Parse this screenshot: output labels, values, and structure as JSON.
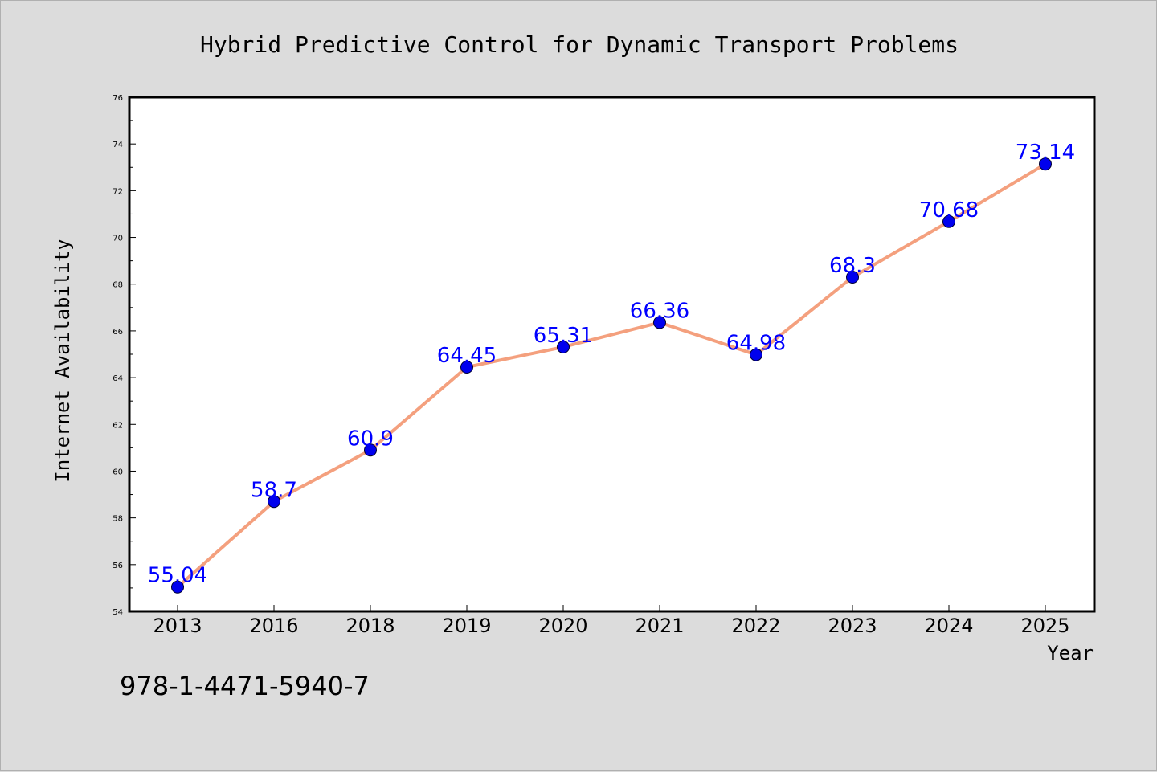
{
  "chart_data": {
    "type": "line",
    "title": "Hybrid Predictive Control for Dynamic Transport Problems",
    "xlabel": "Year",
    "ylabel": "Internet Availability",
    "categories": [
      "2013",
      "2016",
      "2018",
      "2019",
      "2020",
      "2021",
      "2022",
      "2023",
      "2024",
      "2025"
    ],
    "values": [
      55.04,
      58.7,
      60.9,
      64.45,
      65.31,
      66.36,
      64.98,
      68.3,
      70.68,
      73.14
    ],
    "data_labels": [
      "55.04",
      "58.7",
      "60.9",
      "64.45",
      "65.31",
      "66.36",
      "64.98",
      "68.3",
      "70.68",
      "73.14"
    ],
    "ylim": [
      54,
      76
    ],
    "yticks": [
      "54",
      "56",
      "58",
      "60",
      "62",
      "64",
      "66",
      "68",
      "70",
      "72",
      "74",
      "76"
    ],
    "grid": false,
    "colors": {
      "line": "#f4a07e",
      "marker": "#0000ee",
      "label": "#0000ff",
      "plot_bg": "#ffffff",
      "page_bg": "#dcdcdc"
    }
  },
  "footer": {
    "isbn": "978-1-4471-5940-7"
  }
}
